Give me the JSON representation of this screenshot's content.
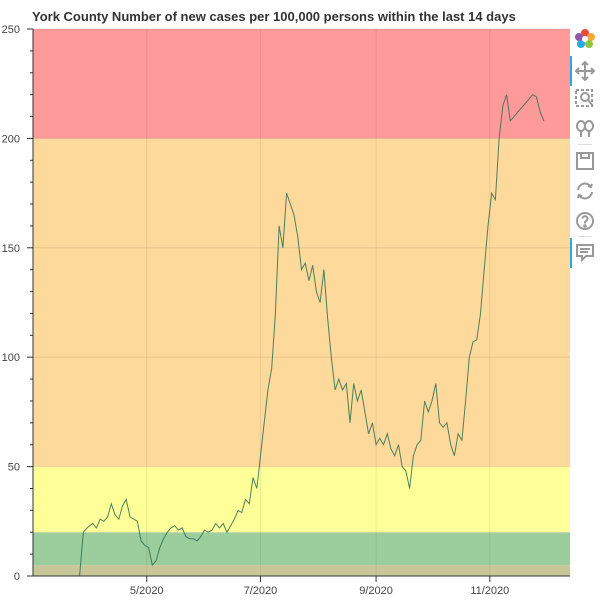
{
  "chart_data": {
    "type": "line",
    "title": "York County Number of new cases per 100,000 persons within the last 14 days",
    "xlabel": "",
    "ylabel": "",
    "xlim": [
      "2020-03-01",
      "2020-12-14"
    ],
    "ylim": [
      0,
      250
    ],
    "x_ticks": [
      {
        "date": "2020-05-01",
        "label": "5/2020"
      },
      {
        "date": "2020-07-01",
        "label": "7/2020"
      },
      {
        "date": "2020-09-01",
        "label": "9/2020"
      },
      {
        "date": "2020-11-01",
        "label": "11/2020"
      }
    ],
    "y_ticks": [
      0,
      50,
      100,
      150,
      200,
      250
    ],
    "grid": true,
    "bands": [
      {
        "from": 0,
        "to": 5,
        "color": "#c9c79a"
      },
      {
        "from": 5,
        "to": 20,
        "color": "#9ccd9c"
      },
      {
        "from": 20,
        "to": 50,
        "color": "#ffff99"
      },
      {
        "from": 50,
        "to": 200,
        "color": "#fdd99b"
      },
      {
        "from": 200,
        "to": 250,
        "color": "#ff9a9a"
      }
    ],
    "line_color": "#2f6e4f",
    "series": [
      {
        "x": [
          "2020-03-26",
          "2020-03-28",
          "2020-03-30",
          "2020-04-02",
          "2020-04-04",
          "2020-04-06",
          "2020-04-08",
          "2020-04-10",
          "2020-04-12",
          "2020-04-14",
          "2020-04-16",
          "2020-04-18",
          "2020-04-20",
          "2020-04-22",
          "2020-04-24",
          "2020-04-26",
          "2020-04-28",
          "2020-04-30",
          "2020-05-02",
          "2020-05-04",
          "2020-05-06",
          "2020-05-08",
          "2020-05-10",
          "2020-05-12",
          "2020-05-14",
          "2020-05-16",
          "2020-05-18",
          "2020-05-20",
          "2020-05-22",
          "2020-05-24",
          "2020-05-26",
          "2020-05-28",
          "2020-05-30",
          "2020-06-01",
          "2020-06-03",
          "2020-06-05",
          "2020-06-07",
          "2020-06-09",
          "2020-06-11",
          "2020-06-13",
          "2020-06-15",
          "2020-06-17",
          "2020-06-19",
          "2020-06-21",
          "2020-06-23",
          "2020-06-25",
          "2020-06-27",
          "2020-06-29",
          "2020-07-01",
          "2020-07-03",
          "2020-07-05",
          "2020-07-07",
          "2020-07-09",
          "2020-07-11",
          "2020-07-13",
          "2020-07-15",
          "2020-07-17",
          "2020-07-19",
          "2020-07-21",
          "2020-07-23",
          "2020-07-25",
          "2020-07-27",
          "2020-07-29",
          "2020-07-31",
          "2020-08-02",
          "2020-08-04",
          "2020-08-06",
          "2020-08-08",
          "2020-08-10",
          "2020-08-12",
          "2020-08-14",
          "2020-08-16",
          "2020-08-18",
          "2020-08-20",
          "2020-08-22",
          "2020-08-24",
          "2020-08-26",
          "2020-08-28",
          "2020-08-30",
          "2020-09-01",
          "2020-09-03",
          "2020-09-05",
          "2020-09-07",
          "2020-09-09",
          "2020-09-11",
          "2020-09-13",
          "2020-09-15",
          "2020-09-17",
          "2020-09-19",
          "2020-09-21",
          "2020-09-23",
          "2020-09-25",
          "2020-09-27",
          "2020-09-29",
          "2020-10-01",
          "2020-10-03",
          "2020-10-05",
          "2020-10-07",
          "2020-10-09",
          "2020-10-11",
          "2020-10-13",
          "2020-10-15",
          "2020-10-17",
          "2020-10-19",
          "2020-10-21",
          "2020-10-23",
          "2020-10-25",
          "2020-10-27",
          "2020-10-29",
          "2020-10-31",
          "2020-11-02",
          "2020-11-04",
          "2020-11-06",
          "2020-11-08",
          "2020-11-10",
          "2020-11-12",
          "2020-11-14",
          "2020-11-16",
          "2020-11-18",
          "2020-11-20",
          "2020-11-22",
          "2020-11-24",
          "2020-11-26",
          "2020-11-28",
          "2020-11-30"
        ],
        "y": [
          0,
          20,
          22,
          24,
          22,
          26,
          25,
          27,
          33,
          28,
          26,
          32,
          35,
          27,
          26,
          25,
          16,
          14,
          13,
          5,
          7,
          13,
          17,
          20,
          22,
          23,
          21,
          22,
          18,
          17,
          17,
          16,
          18,
          21,
          20,
          21,
          24,
          22,
          24,
          20,
          23,
          26,
          30,
          29,
          35,
          33,
          45,
          40,
          55,
          70,
          85,
          95,
          120,
          160,
          150,
          175,
          170,
          165,
          155,
          140,
          143,
          135,
          142,
          130,
          125,
          140,
          118,
          100,
          85,
          90,
          85,
          88,
          70,
          88,
          80,
          85,
          75,
          65,
          70,
          60,
          63,
          60,
          65,
          58,
          55,
          60,
          50,
          48,
          40,
          55,
          60,
          62,
          80,
          75,
          80,
          88,
          70,
          68,
          70,
          60,
          55,
          65,
          62,
          80,
          100,
          107,
          108,
          120,
          140,
          160,
          175,
          172,
          200,
          215,
          220,
          208,
          210,
          212,
          214,
          216,
          218,
          220,
          219,
          212,
          208
        ]
      }
    ]
  },
  "toolbar": {
    "items": [
      {
        "name": "bokeh-logo-icon"
      },
      {
        "name": "pan-icon"
      },
      {
        "name": "box-zoom-icon"
      },
      {
        "name": "wheel-zoom-icon"
      },
      {
        "name": "save-icon"
      },
      {
        "name": "reset-icon"
      },
      {
        "name": "help-icon"
      },
      {
        "name": "hover-icon"
      }
    ]
  }
}
